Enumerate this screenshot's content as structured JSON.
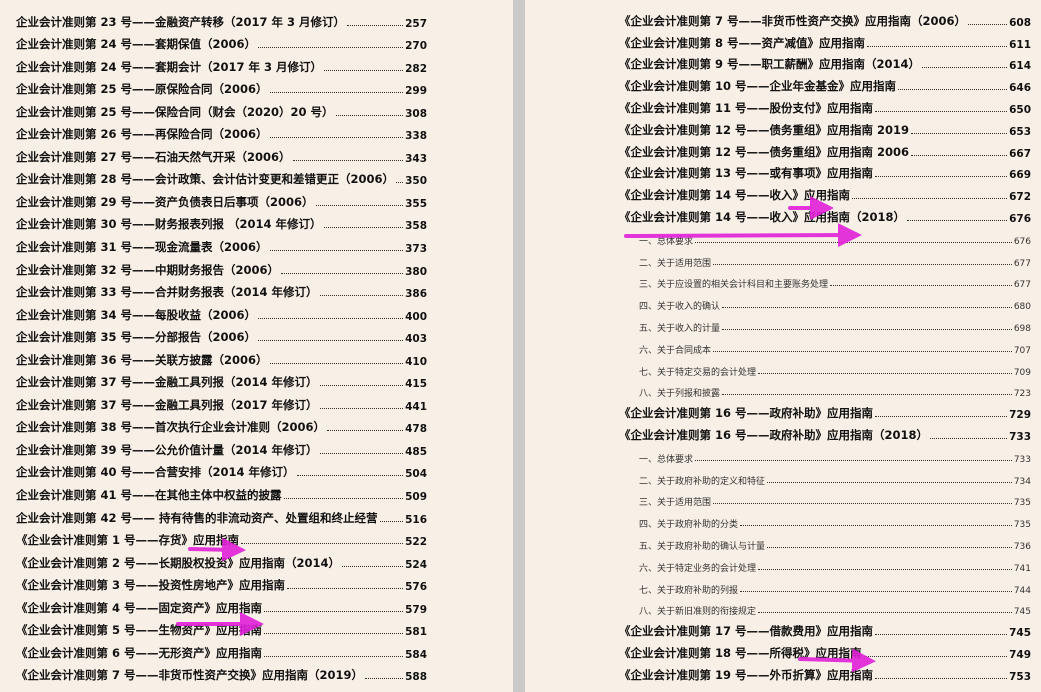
{
  "left_page": {
    "entries": [
      {
        "title": "企业会计准则第 23 号——金融资产转移（2017 年 3 月修订）",
        "page": 257
      },
      {
        "title": "企业会计准则第 24 号——套期保值（2006）",
        "page": 270
      },
      {
        "title": "企业会计准则第 24 号——套期会计（2017 年 3 月修订）",
        "page": 282
      },
      {
        "title": "企业会计准则第 25 号——原保险合同（2006）",
        "page": 299
      },
      {
        "title": "企业会计准则第 25 号——保险合同（财会（2020）20 号）",
        "page": 308
      },
      {
        "title": "企业会计准则第 26 号——再保险合同（2006）",
        "page": 338
      },
      {
        "title": "企业会计准则第 27 号——石油天然气开采（2006）",
        "page": 343
      },
      {
        "title": "企业会计准则第 28 号——会计政策、会计估计变更和差错更正（2006）",
        "page": 350
      },
      {
        "title": "企业会计准则第 29 号——资产负债表日后事项（2006）",
        "page": 355
      },
      {
        "title": "企业会计准则第 30 号——财务报表列报 （2014 年修订）",
        "page": 358
      },
      {
        "title": "企业会计准则第 31 号——现金流量表（2006）",
        "page": 373
      },
      {
        "title": "企业会计准则第 32 号——中期财务报告（2006）",
        "page": 380
      },
      {
        "title": "企业会计准则第 33 号——合并财务报表（2014 年修订）",
        "page": 386
      },
      {
        "title": "企业会计准则第 34 号——每股收益（2006）",
        "page": 400
      },
      {
        "title": "企业会计准则第 35 号——分部报告（2006）",
        "page": 403
      },
      {
        "title": "企业会计准则第 36 号——关联方披露（2006）",
        "page": 410
      },
      {
        "title": "企业会计准则第 37 号——金融工具列报（2014 年修订）",
        "page": 415
      },
      {
        "title": "企业会计准则第 37 号——金融工具列报（2017 年修订）",
        "page": 441
      },
      {
        "title": "企业会计准则第 38 号——首次执行企业会计准则（2006）",
        "page": 478
      },
      {
        "title": "企业会计准则第 39 号——公允价值计量（2014 年修订）",
        "page": 485
      },
      {
        "title": "企业会计准则第 40 号——合营安排（2014 年修订）",
        "page": 504
      },
      {
        "title": "企业会计准则第 41 号——在其他主体中权益的披露",
        "page": 509
      },
      {
        "title": "企业会计准则第 42 号—— 持有待售的非流动资产、处置组和终止经营",
        "page": 516
      },
      {
        "title": "《企业会计准则第 1 号——存货》应用指南",
        "page": 522
      },
      {
        "title": "《企业会计准则第 2 号——长期股权投资》应用指南（2014）",
        "page": 524
      },
      {
        "title": "《企业会计准则第 3 号——投资性房地产》应用指南",
        "page": 576
      },
      {
        "title": "《企业会计准则第 4 号——固定资产》应用指南",
        "page": 579
      },
      {
        "title": "《企业会计准则第 5 号——生物资产》应用指南",
        "page": 581
      },
      {
        "title": "《企业会计准则第 6 号——无形资产》应用指南",
        "page": 584
      },
      {
        "title": "《企业会计准则第 7 号——非货币性资产交换》应用指南（2019）",
        "page": 588
      }
    ]
  },
  "right_page": {
    "entries": [
      {
        "title": "《企业会计准则第 7 号——非货币性资产交换》应用指南（2006）",
        "page": 608
      },
      {
        "title": "《企业会计准则第 8 号——资产减值》应用指南",
        "page": 611
      },
      {
        "title": "《企业会计准则第 9 号——职工薪酬》应用指南（2014）",
        "page": 614
      },
      {
        "title": "《企业会计准则第 10 号——企业年金基金》应用指南",
        "page": 646
      },
      {
        "title": "《企业会计准则第 11 号——股份支付》应用指南",
        "page": 650
      },
      {
        "title": "《企业会计准则第 12 号——债务重组》应用指南 2019",
        "page": 653
      },
      {
        "title": "《企业会计准则第 12 号——债务重组》应用指南 2006",
        "page": 667
      },
      {
        "title": "《企业会计准则第 13 号——或有事项》应用指南",
        "page": 669
      },
      {
        "title": "《企业会计准则第 14 号——收入》应用指南",
        "page": 672
      },
      {
        "title": "《企业会计准则第 14 号——收入》应用指南（2018）",
        "page": 676,
        "sections": [
          {
            "title": "一、总体要求",
            "page": 676
          },
          {
            "title": "二、关于适用范围",
            "page": 677
          },
          {
            "title": "三、关于应设置的相关会计科目和主要账务处理",
            "page": 677
          },
          {
            "title": "四、关于收入的确认",
            "page": 680
          },
          {
            "title": "五、关于收入的计量",
            "page": 698
          },
          {
            "title": "六、关于合同成本",
            "page": 707
          },
          {
            "title": "七、关于特定交易的会计处理",
            "page": 709
          },
          {
            "title": "八、关于列报和披露",
            "page": 723
          }
        ]
      },
      {
        "title": "《企业会计准则第 16 号——政府补助》应用指南",
        "page": 729
      },
      {
        "title": "《企业会计准则第 16 号——政府补助》应用指南（2018）",
        "page": 733,
        "sections": [
          {
            "title": "一、总体要求",
            "page": 733
          },
          {
            "title": "二、关于政府补助的定义和特征",
            "page": 734
          },
          {
            "title": "三、关于适用范围",
            "page": 735
          },
          {
            "title": "四、关于政府补助的分类",
            "page": 735
          },
          {
            "title": "五、关于政府补助的确认与计量",
            "page": 736
          },
          {
            "title": "六、关于特定业务的会计处理",
            "page": 741
          },
          {
            "title": "七、关于政府补助的列报",
            "page": 744
          },
          {
            "title": "八、关于新旧准则的衔接规定",
            "page": 745
          }
        ]
      },
      {
        "title": "《企业会计准则第 17 号——借款费用》应用指南",
        "page": 745
      },
      {
        "title": "《企业会计准则第 18 号——所得税》应用指南",
        "page": 749
      },
      {
        "title": "《企业会计准则第 19 号——外币折算》应用指南",
        "page": 753
      }
    ]
  }
}
